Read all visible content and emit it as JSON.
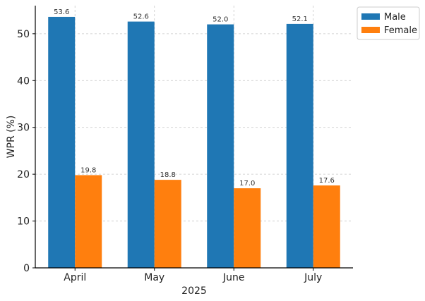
{
  "chart_data": {
    "type": "bar",
    "categories": [
      "April",
      "May",
      "June",
      "July"
    ],
    "series": [
      {
        "name": "Male",
        "values": [
          53.6,
          52.6,
          52.0,
          52.1
        ],
        "color": "#1f77b4"
      },
      {
        "name": "Female",
        "values": [
          19.8,
          18.8,
          17.0,
          17.6
        ],
        "color": "#ff7f0e"
      }
    ],
    "xlabel": "2025",
    "ylabel": "WPR (%)",
    "ylim": [
      0,
      56
    ],
    "yticks": [
      0,
      10,
      20,
      30,
      40,
      50
    ],
    "grid": true,
    "legend": "top-right",
    "data_labels": true
  }
}
